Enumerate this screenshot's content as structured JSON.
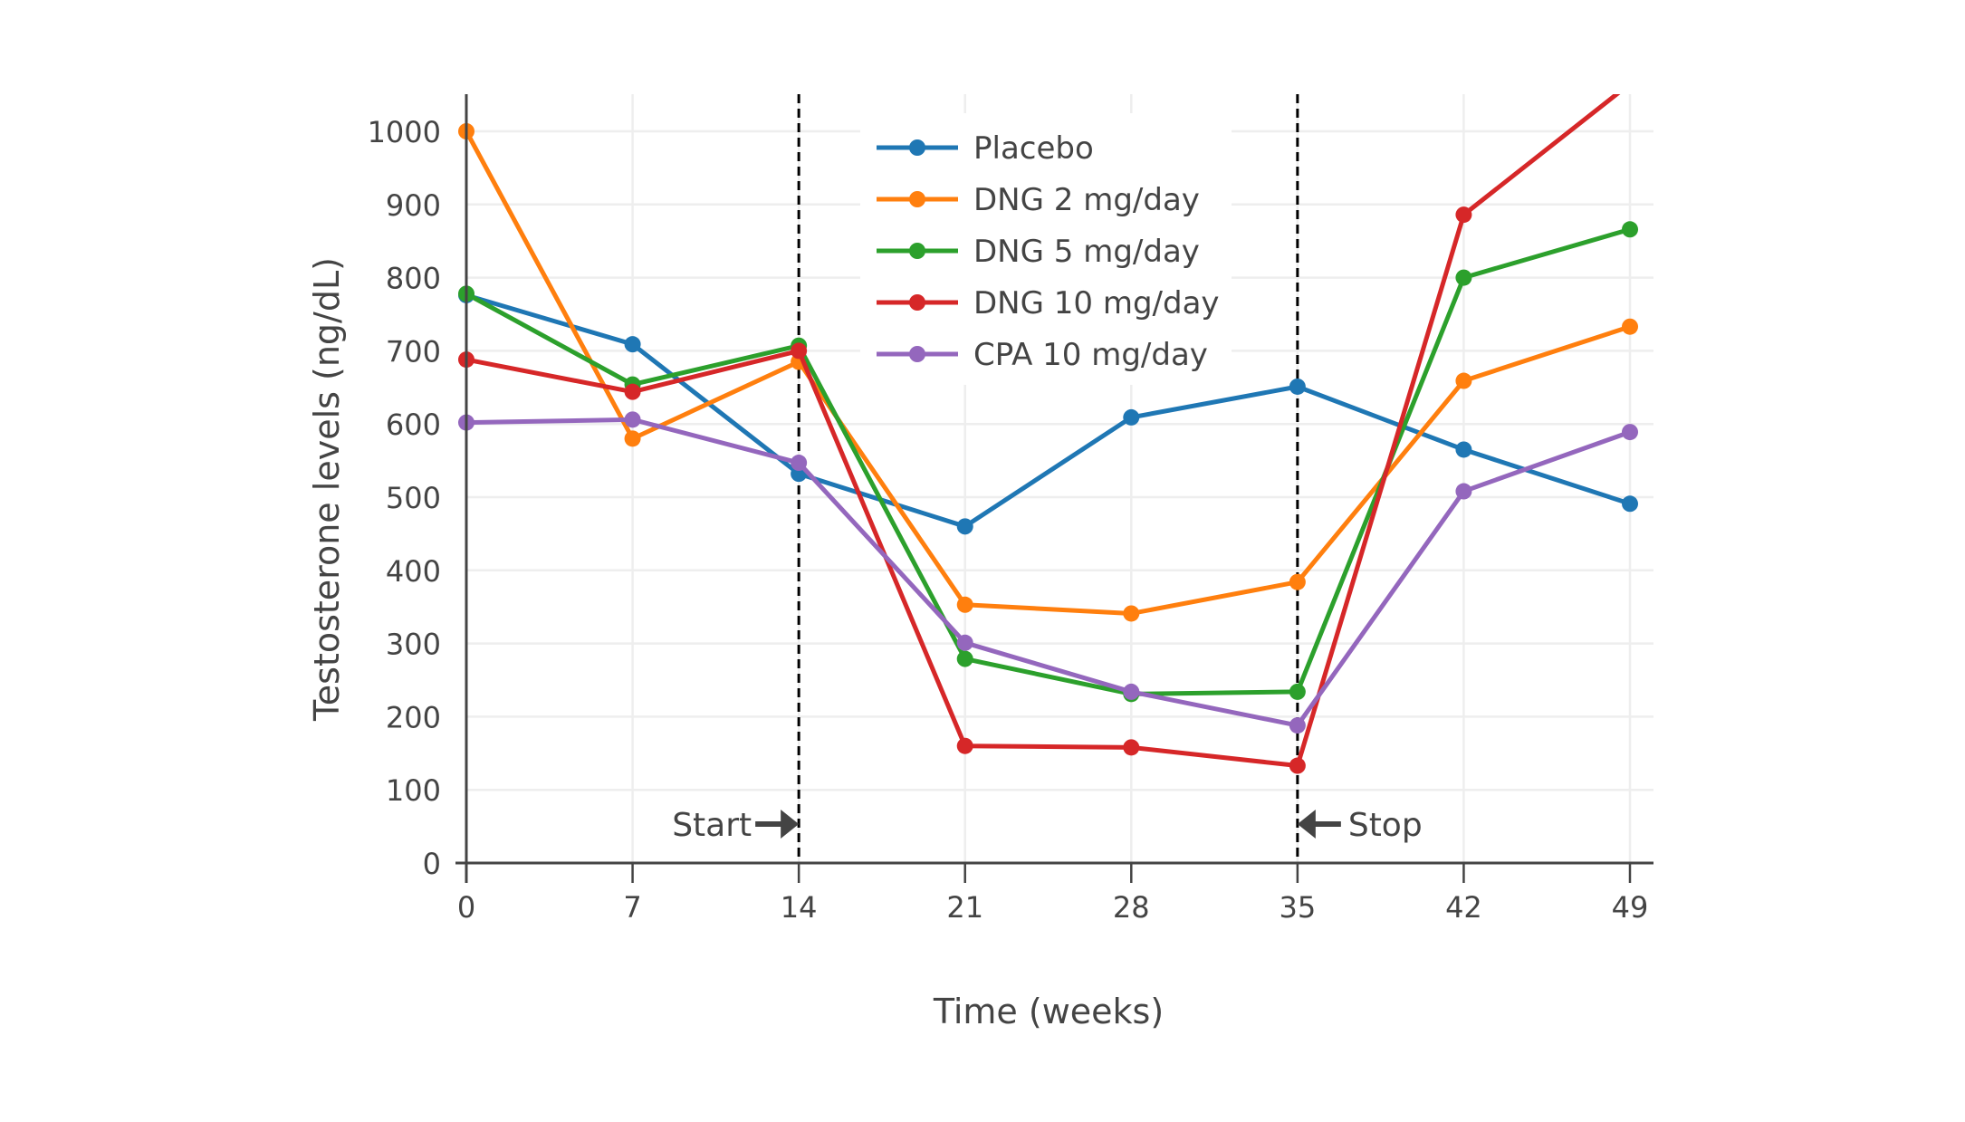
{
  "chart_data": {
    "type": "line",
    "title": "",
    "xlabel": "Time (weeks)",
    "ylabel": "Testosterone levels (ng/dL)",
    "x": [
      0,
      7,
      14,
      21,
      28,
      35,
      42,
      49
    ],
    "xticks": [
      "0",
      "7",
      "14",
      "21",
      "28",
      "35",
      "42",
      "49"
    ],
    "yticks": [
      "0",
      "100",
      "200",
      "300",
      "400",
      "500",
      "600",
      "700",
      "800",
      "900",
      "1000"
    ],
    "xlim": [
      0,
      49
    ],
    "ylim": [
      0,
      1050
    ],
    "grid": true,
    "legend_position": "top-center",
    "series": [
      {
        "name": "Placebo",
        "color": "#1f77b4",
        "values": [
          776,
          709,
          532,
          460,
          609,
          651,
          565,
          491
        ]
      },
      {
        "name": "DNG 2 mg/day",
        "color": "#ff7f0e",
        "values": [
          1000,
          580,
          685,
          353,
          341,
          384,
          659,
          733
        ]
      },
      {
        "name": "DNG 5 mg/day",
        "color": "#2ca02c",
        "values": [
          778,
          654,
          707,
          279,
          231,
          234,
          800,
          866
        ]
      },
      {
        "name": "DNG 10 mg/day",
        "color": "#d62728",
        "values": [
          688,
          644,
          700,
          160,
          158,
          133,
          886,
          1065
        ]
      },
      {
        "name": "CPA 10 mg/day",
        "color": "#9467bd",
        "values": [
          602,
          606,
          547,
          301,
          234,
          188,
          508,
          589
        ]
      }
    ],
    "annotations": [
      {
        "text": "Start",
        "x": 14,
        "arrow": "right"
      },
      {
        "text": "Stop",
        "x": 35,
        "arrow": "left"
      }
    ]
  }
}
